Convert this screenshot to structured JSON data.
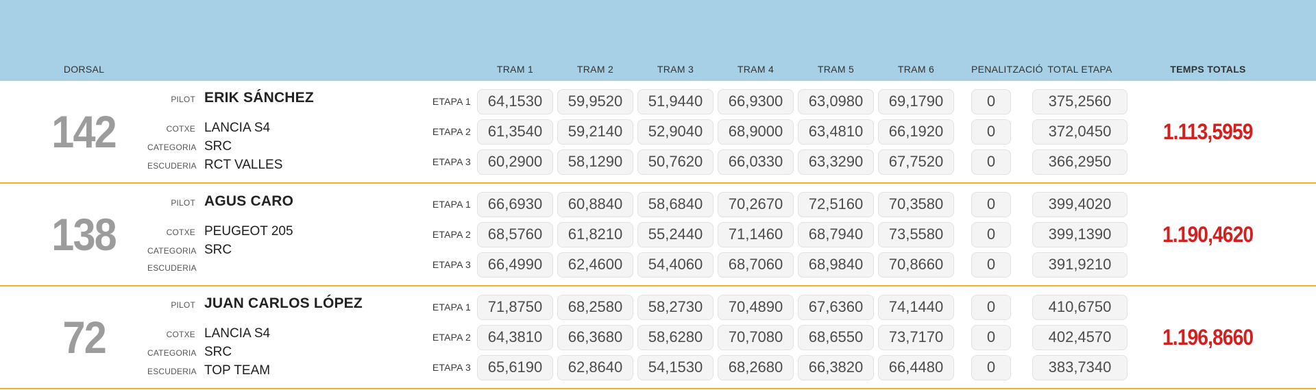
{
  "header": {
    "dorsal_label": "DORSAL",
    "tram_labels": [
      "TRAM 1",
      "TRAM 2",
      "TRAM 3",
      "TRAM 4",
      "TRAM 5",
      "TRAM 6"
    ],
    "penalty_label": "PENALITZACIÓ",
    "total_label": "TOTAL ETAPA",
    "grand_total_label": "TEMPS TOTALS"
  },
  "field_labels": {
    "pilot": "PILOT",
    "car": "COTXE",
    "category": "CATEGORIA",
    "team": "ESCUDERIA"
  },
  "etapa_labels": [
    "ETAPA 1",
    "ETAPA 2",
    "ETAPA 3"
  ],
  "colors": {
    "blue": "#a7cfe5",
    "yellow": "#f0b125",
    "red": "#d51f1f",
    "gray_dorsal": "#9c9c9c",
    "cell_bg": "#f4f4f4",
    "cell_border": "#e2e2e2"
  },
  "entries": [
    {
      "dorsal": "142",
      "pilot": "ERIK SÁNCHEZ",
      "car": "LANCIA S4",
      "category": "SRC",
      "team": "RCT VALLES",
      "stages": [
        {
          "trams": [
            "64,1530",
            "59,9520",
            "51,9440",
            "66,9300",
            "63,0980",
            "69,1790"
          ],
          "penalty": "0",
          "total": "375,2560"
        },
        {
          "trams": [
            "61,3540",
            "59,2140",
            "52,9040",
            "68,9000",
            "63,4810",
            "66,1920"
          ],
          "penalty": "0",
          "total": "372,0450"
        },
        {
          "trams": [
            "60,2900",
            "58,1290",
            "50,7620",
            "66,0330",
            "63,3290",
            "67,7520"
          ],
          "penalty": "0",
          "total": "366,2950"
        }
      ],
      "grand_total": "1.113,5959"
    },
    {
      "dorsal": "138",
      "pilot": "AGUS CARO",
      "car": "PEUGEOT 205",
      "category": "SRC",
      "team": "",
      "stages": [
        {
          "trams": [
            "66,6930",
            "60,8840",
            "58,6840",
            "70,2670",
            "72,5160",
            "70,3580"
          ],
          "penalty": "0",
          "total": "399,4020"
        },
        {
          "trams": [
            "68,5760",
            "61,8210",
            "55,2440",
            "71,1460",
            "68,7940",
            "73,5580"
          ],
          "penalty": "0",
          "total": "399,1390"
        },
        {
          "trams": [
            "66,4990",
            "62,4600",
            "54,4060",
            "68,7060",
            "68,9840",
            "70,8660"
          ],
          "penalty": "0",
          "total": "391,9210"
        }
      ],
      "grand_total": "1.190,4620"
    },
    {
      "dorsal": "72",
      "pilot": "JUAN CARLOS LÓPEZ",
      "car": "LANCIA S4",
      "category": "SRC",
      "team": "TOP TEAM",
      "stages": [
        {
          "trams": [
            "71,8750",
            "68,2580",
            "58,2730",
            "70,4890",
            "67,6360",
            "74,1440"
          ],
          "penalty": "0",
          "total": "410,6750"
        },
        {
          "trams": [
            "64,3810",
            "66,3680",
            "58,6280",
            "70,7080",
            "68,6550",
            "73,7170"
          ],
          "penalty": "0",
          "total": "402,4570"
        },
        {
          "trams": [
            "65,6190",
            "62,8640",
            "54,1530",
            "68,2680",
            "66,3820",
            "66,4480"
          ],
          "penalty": "0",
          "total": "383,7340"
        }
      ],
      "grand_total": "1.196,8660"
    }
  ]
}
